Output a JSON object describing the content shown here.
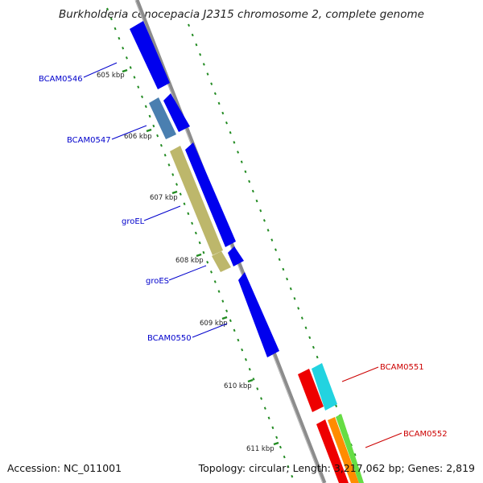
{
  "title": "Burkholderia cenocepacia J2315 chromosome 2, complete genome",
  "footer": {
    "accession": "Accession: NC_011001",
    "topology": "Topology: circular; Length: 3,217,062 bp; Genes: 2,819"
  },
  "scale_labels": [
    "605 kbp",
    "606 kbp",
    "607 kbp",
    "608 kbp",
    "609 kbp",
    "610 kbp",
    "611 kbp"
  ],
  "gene_labels": [
    "BCAM0546",
    "BCAM0547",
    "groEL",
    "groES",
    "BCAM0550",
    "BCAM0551",
    "BCAM0552"
  ],
  "colors": {
    "forward_label": "#0000cc",
    "reverse_label": "#cc0000",
    "scale": "#228b22",
    "backbone": "#8c8c8c",
    "cds_blue": "#0000ee",
    "cds_steel": "#4a7fb0",
    "cds_khaki": "#bdb76b",
    "cds_red": "#ee0000",
    "cds_cyan": "#22d3e0",
    "cds_orange": "#ff8c00",
    "cds_green": "#66dd44"
  }
}
